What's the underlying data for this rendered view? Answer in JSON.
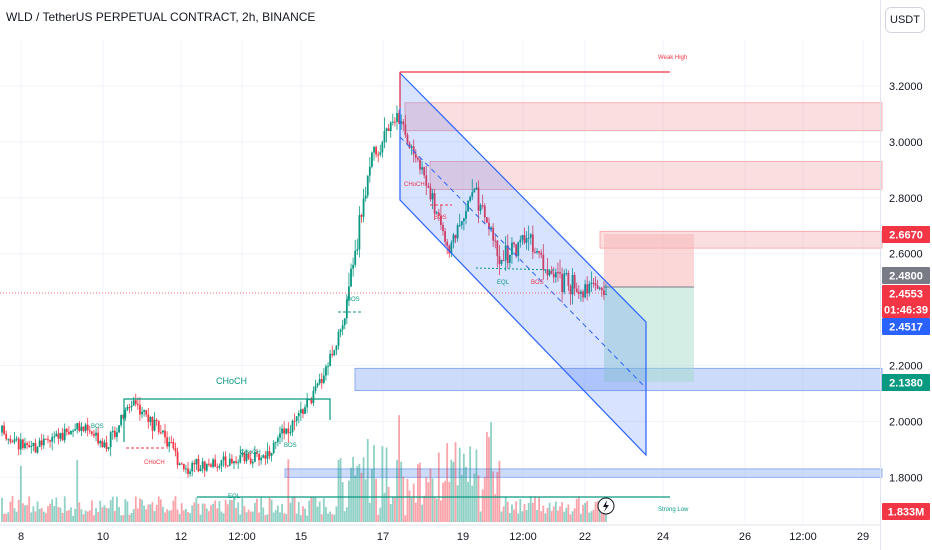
{
  "header": {
    "title": "WLD / TetherUS PERPETUAL CONTRACT, 2h, BINANCE",
    "currency": "USDT"
  },
  "axes": {
    "y_ticks": [
      "3.2000",
      "3.0000",
      "2.8000",
      "2.6000",
      "2.2000",
      "2.0000",
      "1.8000"
    ],
    "x_ticks": [
      "8",
      "10",
      "12",
      "12:00",
      "15",
      "17",
      "19",
      "12:00",
      "22",
      "24",
      "26",
      "12:00",
      "29"
    ]
  },
  "price_labels": {
    "tp": "2.6670",
    "entry": "2.4800",
    "last_price": "2.4553",
    "countdown": "01:46:39",
    "blue_price": "2.4517",
    "sl": "2.1380",
    "volume": "1.833M"
  },
  "annotations": {
    "weak_high": "Weak High",
    "strong_low": "Strong Low",
    "choch_big": "CHoCH",
    "choch_small": "CHoCH",
    "bos": "BOS",
    "eql": "EQL"
  },
  "colors": {
    "up": "#089981",
    "down": "#f23645",
    "channel": "#2962ff",
    "red_zone": "#f7b6b8",
    "blue_zone": "#8fb0f5",
    "green_zone": "#9fd9c6"
  },
  "chart_data": {
    "type": "candlestick",
    "title": "WLD / TetherUS PERPETUAL CONTRACT, 2h, BINANCE",
    "ylim": [
      1.7,
      3.35
    ],
    "series": [
      {
        "name": "price_path",
        "values": [
          1.96,
          1.9,
          1.94,
          1.98,
          1.92,
          2.08,
          1.96,
          1.83,
          1.85,
          1.86,
          1.88,
          1.98,
          2.12,
          2.35,
          2.93,
          3.1,
          2.9,
          2.62,
          2.82,
          2.58,
          2.66,
          2.52,
          2.48,
          2.47
        ]
      }
    ],
    "zones": [
      {
        "label": "red_zone_1",
        "from": 3.04,
        "to": 3.14
      },
      {
        "label": "red_zone_2",
        "from": 2.83,
        "to": 2.93
      },
      {
        "label": "red_zone_3",
        "from": 2.62,
        "to": 2.68
      },
      {
        "label": "blue_zone_upper",
        "from": 2.11,
        "to": 2.19
      },
      {
        "label": "blue_zone_lower",
        "from": 1.8,
        "to": 1.83
      }
    ]
  }
}
